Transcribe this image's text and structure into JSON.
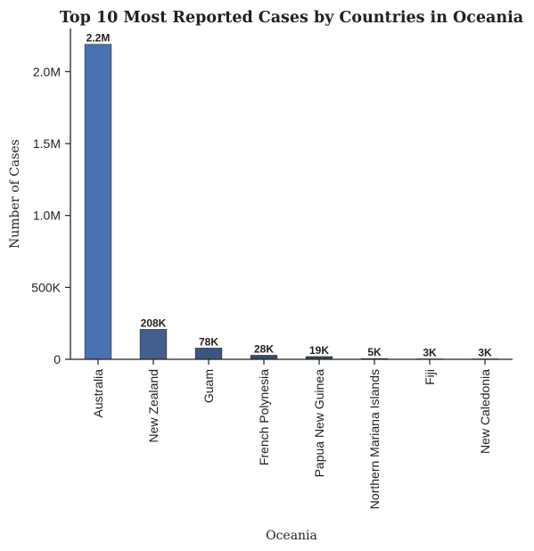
{
  "chart_data": {
    "type": "bar",
    "title": "Top 10 Most Reported Cases by Countries in Oceania",
    "xlabel": "Oceania",
    "ylabel": "Number of Cases",
    "categories": [
      "Australia",
      "New Zealand",
      "Guam",
      "French Polynesia",
      "Papua New Guinea",
      "Northern Mariana Islands",
      "Fiji",
      "New Caledonia"
    ],
    "values": [
      2190000,
      208000,
      78000,
      28000,
      19000,
      5000,
      3000,
      3000
    ],
    "data_labels": [
      "2.2M",
      "208K",
      "78K",
      "28K",
      "19K",
      "5K",
      "3K",
      "3K"
    ],
    "bar_colors": [
      "#4a72b0",
      "#435f8f",
      "#3a5680",
      "#344c72",
      "#30465f",
      "#2c3e55",
      "#2a3a4e",
      "#283648"
    ],
    "ylim": [
      0,
      2300000
    ],
    "yticks": [
      0,
      500000,
      1000000,
      1500000,
      2000000
    ],
    "ytick_labels": [
      "0",
      "500K",
      "1.0M",
      "1.5M",
      "2.0M"
    ],
    "grid": false,
    "legend": "none"
  }
}
